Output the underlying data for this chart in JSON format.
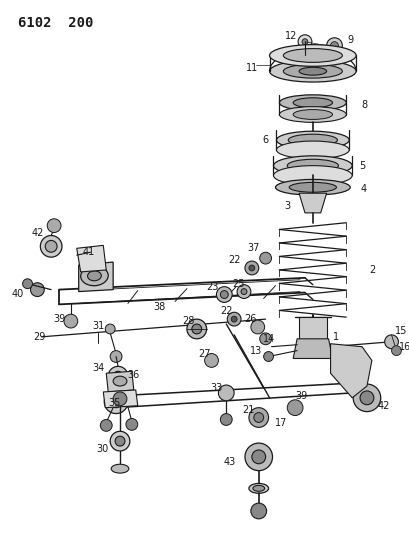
{
  "title": "6102 200",
  "bg_color": "#ffffff",
  "line_color": "#1a1a1a",
  "title_fontsize": 10,
  "label_fontsize": 6.5,
  "figsize": [
    4.1,
    5.33
  ],
  "dpi": 100
}
